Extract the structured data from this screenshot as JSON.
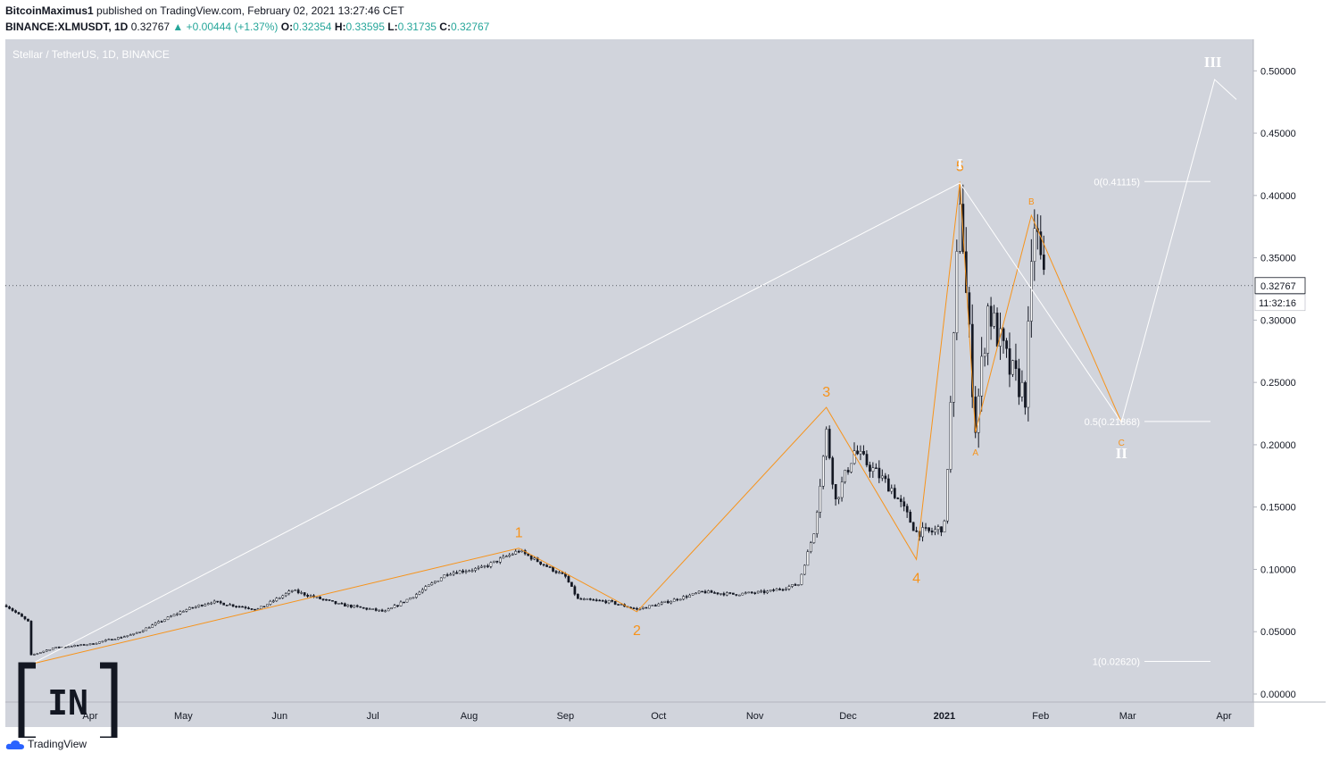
{
  "header": {
    "author": "BitcoinMaximus1",
    "published": " published on TradingView.com, February 02, 2021 13:27:46 CET",
    "symbol": "BINANCE:XLMUSDT, 1D",
    "last": "0.32767",
    "change": "+0.00444 (+1.37%)",
    "o_label": "O:",
    "o": "0.32354",
    "h_label": "H:",
    "h": "0.33595",
    "l_label": "L:",
    "l": "0.31735",
    "c_label": "C:",
    "c": "0.32767"
  },
  "branding": {
    "tradingview": "TradingView",
    "watermark": "[IN]"
  },
  "chart_data": {
    "type": "candlestick",
    "title": "Stellar / TetherUS, 1D, BINANCE",
    "currency": "USDT",
    "ylim": [
      0,
      0.5
    ],
    "y_ticks": [
      "0.50000",
      "0.45000",
      "0.40000",
      "0.35000",
      "0.30000",
      "0.25000",
      "0.20000",
      "0.15000",
      "0.10000",
      "0.05000",
      "0.00000"
    ],
    "x_ticks": [
      "Apr",
      "May",
      "Jun",
      "Jul",
      "Aug",
      "Sep",
      "Oct",
      "Nov",
      "Dec",
      "2021",
      "Feb",
      "Mar",
      "Apr"
    ],
    "x_range": [
      "2020-03-05",
      "2021-04-05"
    ],
    "last_price": "0.32767",
    "countdown": "11:32:16",
    "colors": {
      "bg": "#d1d4dc",
      "candles": "#131722",
      "waves": "#f7931a",
      "projection": "#ffffff"
    },
    "price_path": [
      [
        "2020-03-05",
        0.071
      ],
      [
        "2020-03-12",
        0.058
      ],
      [
        "2020-03-13",
        0.031
      ],
      [
        "2020-03-20",
        0.037
      ],
      [
        "2020-04-01",
        0.04
      ],
      [
        "2020-04-15",
        0.048
      ],
      [
        "2020-05-01",
        0.067
      ],
      [
        "2020-05-10",
        0.074
      ],
      [
        "2020-05-25",
        0.068
      ],
      [
        "2020-06-05",
        0.083
      ],
      [
        "2020-06-20",
        0.072
      ],
      [
        "2020-07-05",
        0.066
      ],
      [
        "2020-07-15",
        0.08
      ],
      [
        "2020-07-25",
        0.097
      ],
      [
        "2020-08-05",
        0.101
      ],
      [
        "2020-08-17",
        0.115
      ],
      [
        "2020-09-01",
        0.094
      ],
      [
        "2020-09-05",
        0.076
      ],
      [
        "2020-09-15",
        0.074
      ],
      [
        "2020-09-24",
        0.068
      ],
      [
        "2020-10-01",
        0.072
      ],
      [
        "2020-10-15",
        0.082
      ],
      [
        "2020-10-25",
        0.08
      ],
      [
        "2020-11-05",
        0.082
      ],
      [
        "2020-11-15",
        0.088
      ],
      [
        "2020-11-20",
        0.13
      ],
      [
        "2020-11-24",
        0.21
      ],
      [
        "2020-11-27",
        0.155
      ],
      [
        "2020-12-03",
        0.195
      ],
      [
        "2020-12-15",
        0.165
      ],
      [
        "2020-12-23",
        0.13
      ],
      [
        "2020-12-28",
        0.13
      ],
      [
        "2021-01-01",
        0.135
      ],
      [
        "2021-01-04",
        0.28
      ],
      [
        "2021-01-06",
        0.405
      ],
      [
        "2021-01-08",
        0.32
      ],
      [
        "2021-01-11",
        0.215
      ],
      [
        "2021-01-15",
        0.31
      ],
      [
        "2021-01-22",
        0.26
      ],
      [
        "2021-01-27",
        0.24
      ],
      [
        "2021-01-30",
        0.38
      ],
      [
        "2021-02-02",
        0.328
      ]
    ],
    "orange_waves": [
      {
        "t": "2020-03-13",
        "p": 0.024,
        "label": ""
      },
      {
        "t": "2020-08-17",
        "p": 0.117,
        "label": "1"
      },
      {
        "t": "2020-09-24",
        "p": 0.066,
        "label": "2"
      },
      {
        "t": "2020-11-24",
        "p": 0.23,
        "label": "3"
      },
      {
        "t": "2020-12-23",
        "p": 0.108,
        "label": "4"
      },
      {
        "t": "2021-01-06",
        "p": 0.411,
        "label": "5"
      },
      {
        "t": "2021-01-11",
        "p": 0.21,
        "label": "A"
      },
      {
        "t": "2021-01-29",
        "p": 0.384,
        "label": "B"
      },
      {
        "t": "2021-02-27",
        "p": 0.218,
        "label": "C"
      }
    ],
    "white_projection": [
      {
        "t": "2020-03-13",
        "p": 0.024,
        "label": ""
      },
      {
        "t": "2021-01-06",
        "p": 0.41,
        "label": "I"
      },
      {
        "t": "2021-02-27",
        "p": 0.218,
        "label": "II"
      },
      {
        "t": "2021-03-29",
        "p": 0.493,
        "label": "III"
      },
      {
        "t": "2021-04-05",
        "p": 0.477,
        "label": ""
      }
    ],
    "fib_levels": [
      {
        "label": "0(0.41115)",
        "value": 0.41115
      },
      {
        "label": "0.5(0.21868)",
        "value": 0.21868
      },
      {
        "label": "1(0.02620)",
        "value": 0.0262
      }
    ]
  }
}
